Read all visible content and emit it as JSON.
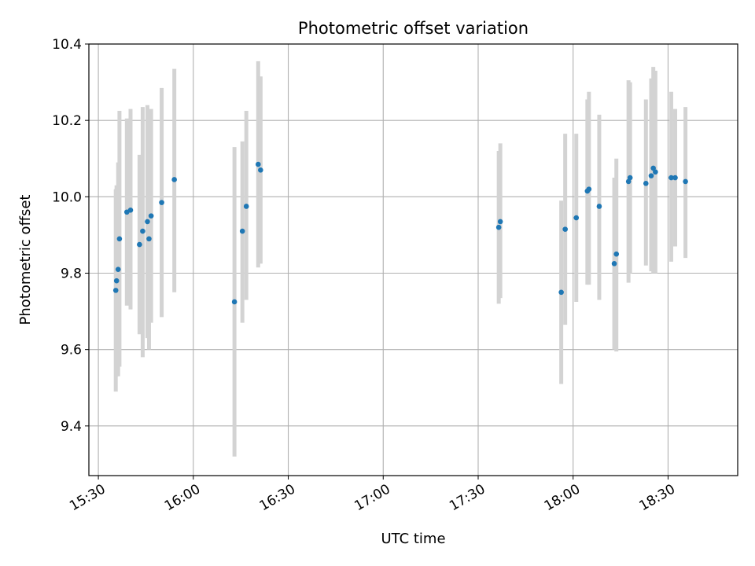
{
  "chart_data": {
    "type": "scatter",
    "title": "Photometric offset variation",
    "xlabel": "UTC time",
    "ylabel": "Photometric offset",
    "xlim": [
      "15:27",
      "18:52"
    ],
    "ylim": [
      9.27,
      10.4
    ],
    "x_ticks": [
      "15:30",
      "16:00",
      "16:30",
      "17:00",
      "17:30",
      "18:00",
      "18:30"
    ],
    "y_ticks": [
      9.4,
      9.6,
      9.8,
      10.0,
      10.2,
      10.4
    ],
    "grid": true,
    "point_color": "#1f77b4",
    "errorbar_color": "#d3d3d3",
    "series": [
      {
        "points": [
          {
            "t": "15:35:30",
            "y": 9.755,
            "lo": 9.49,
            "hi": 10.02
          },
          {
            "t": "15:35:45",
            "y": 9.78,
            "lo": 9.53,
            "hi": 10.03
          },
          {
            "t": "15:36:15",
            "y": 9.81,
            "lo": 9.53,
            "hi": 10.09
          },
          {
            "t": "15:36:40",
            "y": 9.89,
            "lo": 9.555,
            "hi": 10.225
          },
          {
            "t": "15:39:00",
            "y": 9.96,
            "lo": 9.715,
            "hi": 10.205
          },
          {
            "t": "15:40:10",
            "y": 9.965,
            "lo": 9.705,
            "hi": 10.23
          },
          {
            "t": "15:43:00",
            "y": 9.875,
            "lo": 9.64,
            "hi": 10.11
          },
          {
            "t": "15:44:00",
            "y": 9.91,
            "lo": 9.58,
            "hi": 10.235
          },
          {
            "t": "15:45:30",
            "y": 9.935,
            "lo": 9.63,
            "hi": 10.24
          },
          {
            "t": "15:46:00",
            "y": 9.89,
            "lo": 9.6,
            "hi": 10.18
          },
          {
            "t": "15:46:40",
            "y": 9.95,
            "lo": 9.67,
            "hi": 10.23
          },
          {
            "t": "15:50:00",
            "y": 9.985,
            "lo": 9.685,
            "hi": 10.285
          },
          {
            "t": "15:54:00",
            "y": 10.045,
            "lo": 9.75,
            "hi": 10.335
          },
          {
            "t": "16:13:00",
            "y": 9.725,
            "lo": 9.32,
            "hi": 10.13
          },
          {
            "t": "16:15:30",
            "y": 9.91,
            "lo": 9.67,
            "hi": 10.145
          },
          {
            "t": "16:16:45",
            "y": 9.975,
            "lo": 9.73,
            "hi": 10.225
          },
          {
            "t": "16:20:30",
            "y": 10.085,
            "lo": 9.815,
            "hi": 10.355
          },
          {
            "t": "16:21:15",
            "y": 10.07,
            "lo": 9.825,
            "hi": 10.315
          },
          {
            "t": "17:36:30",
            "y": 9.92,
            "lo": 9.72,
            "hi": 10.12
          },
          {
            "t": "17:37:00",
            "y": 9.935,
            "lo": 9.735,
            "hi": 10.14
          },
          {
            "t": "17:56:15",
            "y": 9.75,
            "lo": 9.51,
            "hi": 9.99
          },
          {
            "t": "17:57:30",
            "y": 9.915,
            "lo": 9.665,
            "hi": 10.165
          },
          {
            "t": "18:01:00",
            "y": 9.945,
            "lo": 9.725,
            "hi": 10.165
          },
          {
            "t": "18:04:30",
            "y": 10.015,
            "lo": 9.77,
            "hi": 10.255
          },
          {
            "t": "18:05:00",
            "y": 10.02,
            "lo": 9.77,
            "hi": 10.275
          },
          {
            "t": "18:08:15",
            "y": 9.975,
            "lo": 9.73,
            "hi": 10.215
          },
          {
            "t": "18:13:00",
            "y": 9.825,
            "lo": 9.6,
            "hi": 10.05
          },
          {
            "t": "18:13:40",
            "y": 9.85,
            "lo": 9.595,
            "hi": 10.1
          },
          {
            "t": "18:17:30",
            "y": 10.04,
            "lo": 9.775,
            "hi": 10.305
          },
          {
            "t": "18:18:00",
            "y": 10.05,
            "lo": 9.8,
            "hi": 10.3
          },
          {
            "t": "18:23:00",
            "y": 10.035,
            "lo": 9.82,
            "hi": 10.255
          },
          {
            "t": "18:24:40",
            "y": 10.055,
            "lo": 9.805,
            "hi": 10.31
          },
          {
            "t": "18:25:20",
            "y": 10.075,
            "lo": 9.8,
            "hi": 10.34
          },
          {
            "t": "18:26:00",
            "y": 10.065,
            "lo": 9.8,
            "hi": 10.33
          },
          {
            "t": "18:31:00",
            "y": 10.05,
            "lo": 9.83,
            "hi": 10.275
          },
          {
            "t": "18:32:15",
            "y": 10.05,
            "lo": 9.87,
            "hi": 10.23
          },
          {
            "t": "18:35:30",
            "y": 10.04,
            "lo": 9.84,
            "hi": 10.235
          }
        ]
      }
    ]
  }
}
